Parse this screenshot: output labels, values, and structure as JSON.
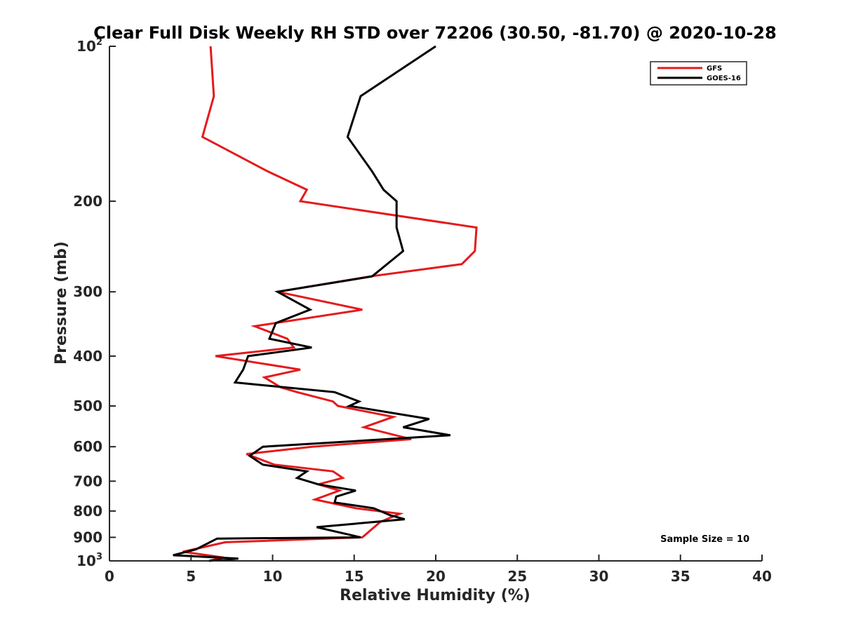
{
  "chart_data": {
    "type": "line",
    "title": "Clear Full Disk Weekly RH STD over 72206 (30.50, -81.70) @ 2020-10-28",
    "xlabel": "Relative Humidity (%)",
    "ylabel": "Pressure (mb)",
    "xlim": [
      0,
      40
    ],
    "ylim": [
      100,
      1000
    ],
    "yscale": "log",
    "yreversed": true,
    "grid": false,
    "legend_position": "top-right",
    "x_ticks": [
      0,
      5,
      10,
      15,
      20,
      25,
      30,
      35,
      40
    ],
    "x_tick_labels": [
      "0",
      "5",
      "10",
      "15",
      "20",
      "25",
      "30",
      "35",
      "40"
    ],
    "y_ticks": [
      100,
      200,
      300,
      400,
      500,
      600,
      700,
      800,
      900,
      1000
    ],
    "y_tick_labels": [
      {
        "base": "10",
        "exp": "2"
      },
      {
        "base": "200",
        "exp": ""
      },
      {
        "base": "300",
        "exp": ""
      },
      {
        "base": "400",
        "exp": ""
      },
      {
        "base": "500",
        "exp": ""
      },
      {
        "base": "600",
        "exp": ""
      },
      {
        "base": "700",
        "exp": ""
      },
      {
        "base": "800",
        "exp": ""
      },
      {
        "base": "900",
        "exp": ""
      },
      {
        "base": "10",
        "exp": "3"
      }
    ],
    "series": [
      {
        "name": "GFS",
        "color": "#e41a1c",
        "points": [
          [
            6.2,
            100
          ],
          [
            6.4,
            125
          ],
          [
            5.7,
            150
          ],
          [
            9.7,
            175
          ],
          [
            12.1,
            190
          ],
          [
            11.7,
            200
          ],
          [
            22.5,
            225
          ],
          [
            22.4,
            250
          ],
          [
            21.6,
            265
          ],
          [
            16.0,
            280
          ],
          [
            10.3,
            300
          ],
          [
            15.5,
            325
          ],
          [
            8.9,
            350
          ],
          [
            10.9,
            370
          ],
          [
            11.3,
            385
          ],
          [
            6.5,
            400
          ],
          [
            11.7,
            425
          ],
          [
            9.5,
            440
          ],
          [
            10.5,
            460
          ],
          [
            11.5,
            470
          ],
          [
            13.7,
            490
          ],
          [
            14.0,
            500
          ],
          [
            17.4,
            525
          ],
          [
            15.6,
            550
          ],
          [
            18.5,
            580
          ],
          [
            12.4,
            600
          ],
          [
            8.4,
            620
          ],
          [
            10.1,
            650
          ],
          [
            13.7,
            670
          ],
          [
            14.3,
            690
          ],
          [
            12.8,
            710
          ],
          [
            14.1,
            730
          ],
          [
            12.6,
            760
          ],
          [
            15.1,
            790
          ],
          [
            17.8,
            810
          ],
          [
            16.6,
            840
          ],
          [
            15.5,
            900
          ],
          [
            7.1,
            920
          ],
          [
            4.5,
            960
          ],
          [
            7.0,
            985
          ],
          [
            6.1,
            1000
          ]
        ]
      },
      {
        "name": "GOES-16",
        "color": "#000000",
        "points": [
          [
            20.0,
            100
          ],
          [
            15.4,
            125
          ],
          [
            14.6,
            150
          ],
          [
            16.1,
            175
          ],
          [
            16.8,
            190
          ],
          [
            17.6,
            200
          ],
          [
            17.6,
            225
          ],
          [
            18.0,
            250
          ],
          [
            16.1,
            280
          ],
          [
            10.3,
            300
          ],
          [
            12.3,
            325
          ],
          [
            10.2,
            345
          ],
          [
            9.8,
            370
          ],
          [
            12.4,
            385
          ],
          [
            8.5,
            400
          ],
          [
            8.2,
            425
          ],
          [
            7.7,
            450
          ],
          [
            13.8,
            470
          ],
          [
            15.3,
            490
          ],
          [
            14.7,
            500
          ],
          [
            19.6,
            530
          ],
          [
            18.0,
            550
          ],
          [
            20.9,
            570
          ],
          [
            9.4,
            600
          ],
          [
            8.6,
            625
          ],
          [
            9.4,
            650
          ],
          [
            12.1,
            670
          ],
          [
            11.5,
            690
          ],
          [
            12.8,
            710
          ],
          [
            15.1,
            730
          ],
          [
            13.9,
            750
          ],
          [
            13.8,
            770
          ],
          [
            16.2,
            790
          ],
          [
            17.2,
            815
          ],
          [
            18.1,
            830
          ],
          [
            12.7,
            860
          ],
          [
            15.4,
            900
          ],
          [
            6.6,
            905
          ],
          [
            5.3,
            950
          ],
          [
            3.9,
            975
          ],
          [
            7.9,
            990
          ],
          [
            6.1,
            1000
          ]
        ]
      }
    ],
    "annotations": [
      {
        "text": "Sample Size = 10",
        "x": 36.5,
        "y": 905
      }
    ]
  }
}
